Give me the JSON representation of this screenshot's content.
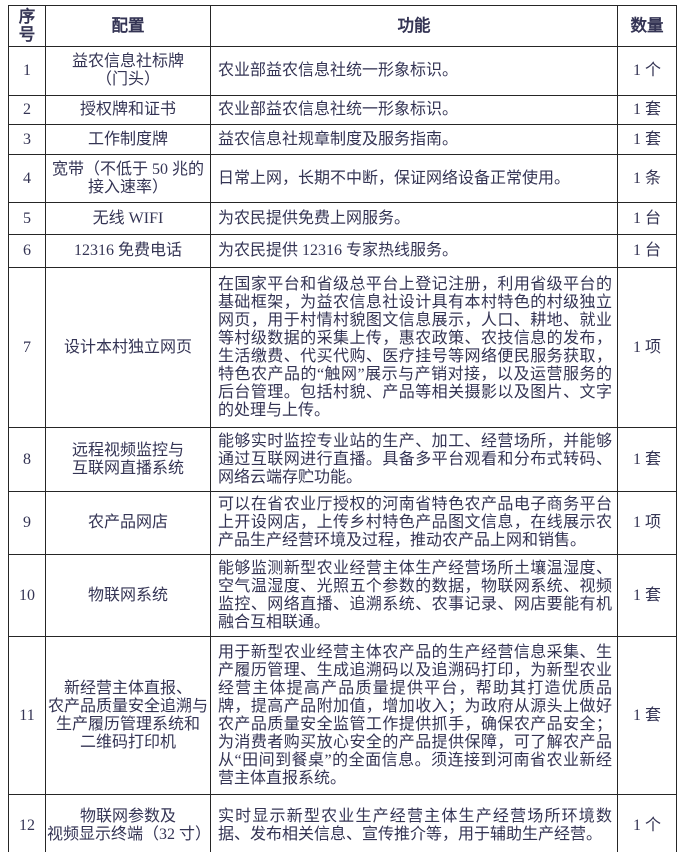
{
  "colors": {
    "text": "#343454",
    "border": "#262626",
    "background": "#ffffff"
  },
  "table": {
    "headers": [
      "序号",
      "配置",
      "功能",
      "数量"
    ],
    "rows": [
      {
        "no": "1",
        "config": "益农信息社标牌\n（门头）",
        "func": "农业部益农信息社统一形象标识。",
        "qty": "1 个"
      },
      {
        "no": "2",
        "config": "授权牌和证书",
        "func": "农业部益农信息社统一形象标识。",
        "qty": "1 套"
      },
      {
        "no": "3",
        "config": "工作制度牌",
        "func": "益农信息社规章制度及服务指南。",
        "qty": "1 套"
      },
      {
        "no": "4",
        "config": "宽带（不低于 50 兆的\n接入速率）",
        "func": "日常上网，长期不中断，保证网络设备正常使用。",
        "qty": "1 条"
      },
      {
        "no": "5",
        "config": "无线 WIFI",
        "func": "为农民提供免费上网服务。",
        "qty": "1 台"
      },
      {
        "no": "6",
        "config": "12316 免费电话",
        "func": "为农民提供 12316 专家热线服务。",
        "qty": "1 台"
      },
      {
        "no": "7",
        "config": "设计本村独立网页",
        "func": "在国家平台和省级总平台上登记注册，利用省级平台的基础框架，为益农信息社设计具有本村特色的村级独立网页，用于村情村貌图文信息展示，人口、耕地、就业等村级数据的采集上传，惠农政策、农技信息的发布，生活缴费、代买代购、医疗挂号等网络便民服务获取，特色农产品的“触网”展示与产销对接，以及运营服务的后台管理。包括村貌、产品等相关摄影以及图片、文字的处理与上传。",
        "qty": "1 项"
      },
      {
        "no": "8",
        "config": "远程视频监控与\n互联网直播系统",
        "func": "能够实时监控专业站的生产、加工、经营场所，并能够通过互联网进行直播。具备多平台观看和分布式转码、网络云端存贮功能。",
        "qty": "1 套"
      },
      {
        "no": "9",
        "config": "农产品网店",
        "func": "可以在省农业厅授权的河南省特色农产品电子商务平台上开设网店，上传乡村特色产品图文信息，在线展示农产品生产经营环境及过程，推动农产品上网和销售。",
        "qty": "1 项"
      },
      {
        "no": "10",
        "config": "物联网系统",
        "func": "能够监测新型农业经营主体生产经营场所土壤温湿度、空气温湿度、光照五个参数的数据，物联网系统、视频监控、网络直播、追溯系统、农事记录、网店要能有机融合互相联通。",
        "qty": "1 套"
      },
      {
        "no": "11",
        "config": "新经营主体直报、\n农产品质量安全追溯与\n生产履历管理系统和\n二维码打印机",
        "func": "用于新型农业经营主体农产品的生产经营信息采集、生产履历管理、生成追溯码以及追溯码打印，为新型农业经营主体提高产品质量提供平台，帮助其打造优质品牌，提高产品附加值，增加收入；为政府从源头上做好农产品质量安全监管工作提供抓手，确保农产品安全；为消费者购买放心安全的产品提供保障，可了解农产品从“田间到餐桌”的全面信息。须连接到河南省农业新经营主体直报系统。",
        "qty": "1 套"
      },
      {
        "no": "12",
        "config": "物联网参数及\n视频显示终端（32 寸）",
        "func": "实时显示新型农业生产经营主体生产经营场所环境数据、发布相关信息、宣传推介等，用于辅助生产经营。",
        "qty": "1 个"
      }
    ]
  }
}
